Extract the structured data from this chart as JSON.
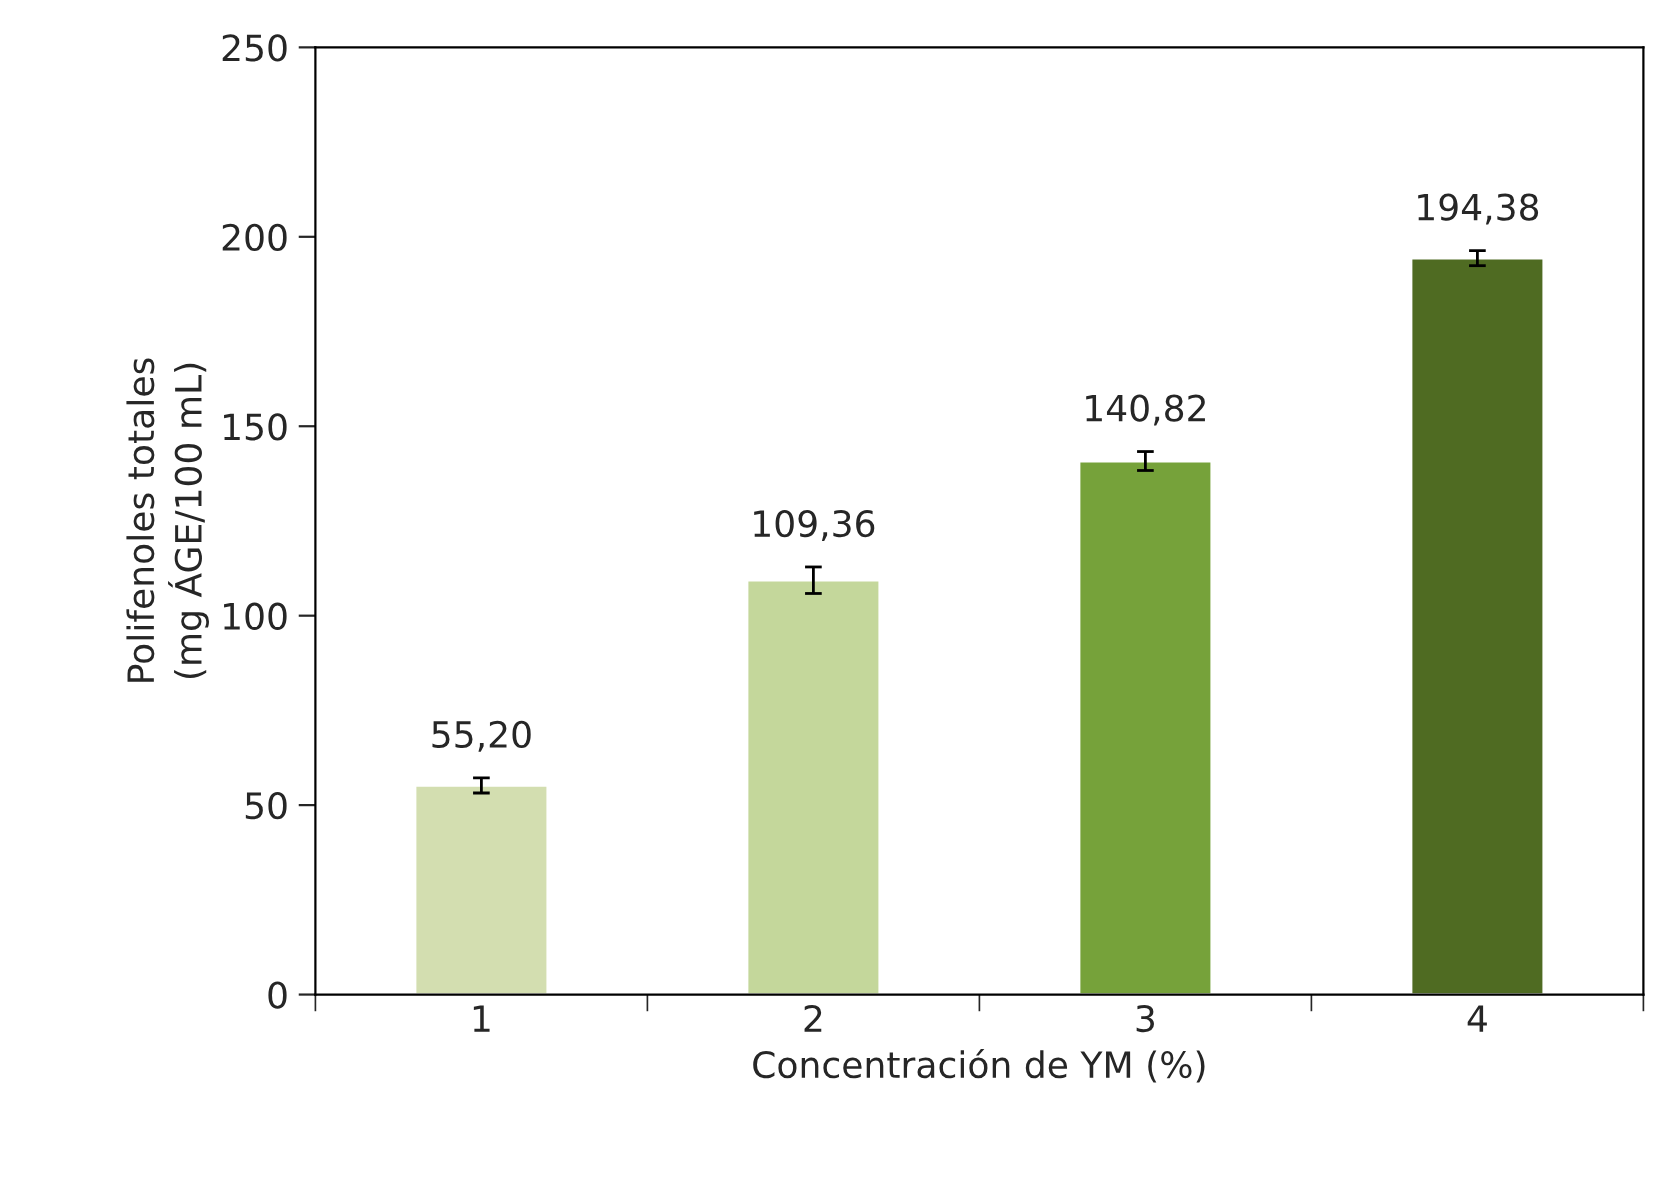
{
  "chart_data": {
    "type": "bar",
    "xlabel": "Concentración de YM (%)",
    "ylabel": "Polifenoles totales\n(mg ÁGE/100 mL)",
    "categories": [
      "1",
      "2",
      "3",
      "4"
    ],
    "values": [
      55.2,
      109.36,
      140.82,
      194.38
    ],
    "errors": [
      2,
      3.5,
      2.5,
      2
    ],
    "value_labels": [
      "55,20",
      "109,36",
      "140,82",
      "194,38"
    ],
    "colors": [
      "#d3deb0",
      "#c4d79b",
      "#76a23a",
      "#4f6b22"
    ],
    "ylim": [
      0,
      250
    ],
    "yticks": [
      0,
      50,
      100,
      150,
      200,
      250
    ],
    "grid": false
  }
}
